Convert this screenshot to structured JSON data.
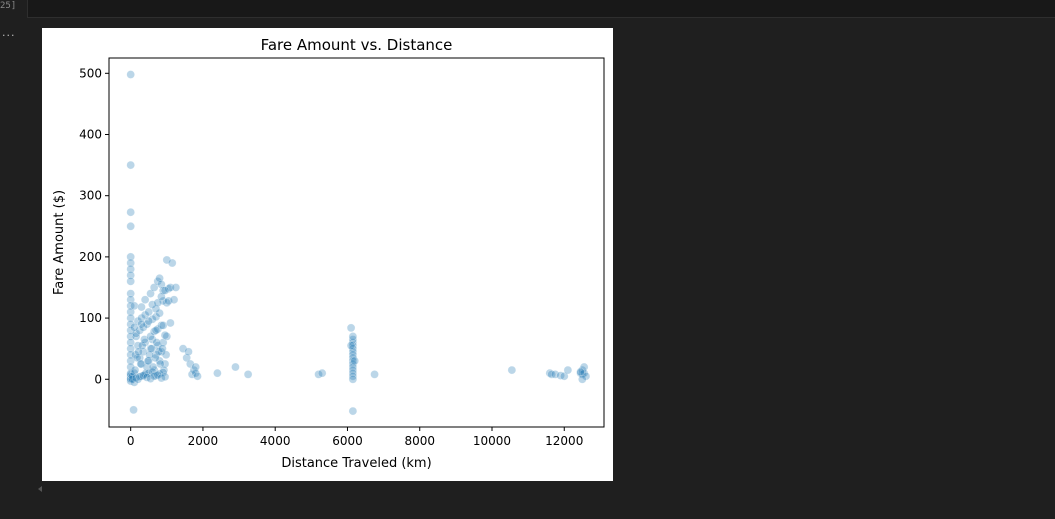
{
  "cell": {
    "execution_count": "25]",
    "output_prompt": "..."
  },
  "chart_data": {
    "type": "scatter",
    "title": "Fare Amount vs. Distance",
    "xlabel": "Distance Traveled (km)",
    "ylabel": "Fare Amount ($)",
    "xlim": [
      -600,
      13100
    ],
    "ylim": [
      -78,
      525
    ],
    "xticks": [
      0,
      2000,
      4000,
      6000,
      8000,
      10000,
      12000
    ],
    "xtick_labels": [
      "0",
      "2000",
      "4000",
      "6000",
      "8000",
      "10000",
      "12000"
    ],
    "yticks": [
      0,
      100,
      200,
      300,
      400,
      500
    ],
    "ytick_labels": [
      "0",
      "100",
      "200",
      "300",
      "400",
      "500"
    ],
    "grid": false,
    "point_color": "#1f77b4",
    "point_alpha": 0.3,
    "series": [
      {
        "x": [
          0,
          0,
          0,
          0,
          0,
          0,
          0,
          0,
          0,
          0,
          0,
          0,
          0,
          0,
          0,
          0,
          0,
          0,
          0,
          0,
          0,
          0,
          0,
          0,
          0,
          0,
          0,
          0,
          80,
          100,
          130,
          150,
          200,
          250,
          300,
          350,
          400,
          450,
          500,
          550,
          600,
          650,
          700,
          750,
          800,
          850,
          900,
          950,
          1000,
          50,
          120,
          180,
          220,
          280,
          320,
          380,
          420,
          480,
          520,
          580,
          620,
          680,
          720,
          780,
          820,
          880,
          920,
          980,
          100,
          200,
          300,
          400,
          500,
          600,
          700,
          800,
          900,
          150,
          250,
          350,
          450,
          550,
          650,
          750,
          850,
          950,
          200,
          300,
          400,
          500,
          600,
          700,
          800,
          100,
          400,
          700,
          1000,
          300,
          600,
          900,
          550,
          650,
          750,
          800,
          850,
          900,
          1000,
          1050,
          1100,
          1150,
          1250,
          750,
          850,
          950,
          1050,
          1200,
          1450,
          1550,
          1600,
          1650,
          1700,
          1750,
          1800,
          1800,
          1850,
          2400,
          2900,
          3250,
          5200,
          5300,
          6100,
          6150,
          6150,
          6150,
          6150,
          6150,
          6150,
          6150,
          6150,
          6150,
          6150,
          6150,
          6150,
          6150,
          6150,
          6150,
          6100,
          6200,
          6150,
          6750,
          10550,
          11600,
          11650,
          11750,
          11900,
          12000,
          12100,
          12450,
          12500,
          12500,
          12550,
          12550,
          12600,
          12500,
          12450,
          100,
          300,
          500,
          700,
          900,
          1100,
          50,
          150,
          250,
          350,
          450,
          550,
          650,
          750,
          850,
          950
        ],
        "y": [
          498,
          350,
          273,
          250,
          200,
          190,
          180,
          170,
          160,
          140,
          130,
          120,
          110,
          100,
          90,
          80,
          70,
          60,
          50,
          40,
          30,
          20,
          10,
          5,
          0,
          -3,
          1,
          8,
          -50,
          10,
          40,
          70,
          55,
          35,
          25,
          45,
          60,
          20,
          30,
          50,
          65,
          15,
          40,
          55,
          30,
          45,
          60,
          25,
          70,
          5,
          15,
          35,
          45,
          25,
          55,
          65,
          10,
          30,
          40,
          50,
          20,
          35,
          60,
          45,
          25,
          50,
          15,
          40,
          -5,
          0,
          5,
          8,
          10,
          12,
          6,
          9,
          11,
          75,
          80,
          85,
          90,
          70,
          78,
          82,
          88,
          72,
          95,
          100,
          105,
          110,
          98,
          102,
          108,
          120,
          130,
          115,
          125,
          118,
          122,
          128,
          140,
          150,
          160,
          165,
          155,
          145,
          195,
          148,
          150,
          190,
          150,
          125,
          135,
          145,
          128,
          130,
          50,
          35,
          45,
          25,
          8,
          15,
          20,
          10,
          5,
          10,
          20,
          8,
          8,
          10,
          84,
          60,
          55,
          50,
          45,
          40,
          35,
          30,
          25,
          20,
          15,
          10,
          5,
          0,
          65,
          70,
          55,
          30,
          -52,
          8,
          15,
          10,
          8,
          8,
          6,
          5,
          15,
          10,
          8,
          15,
          20,
          10,
          5,
          0,
          12,
          85,
          90,
          95,
          80,
          88,
          92,
          0,
          2,
          4,
          6,
          3,
          1,
          5,
          7,
          2,
          4
        ]
      }
    ]
  }
}
